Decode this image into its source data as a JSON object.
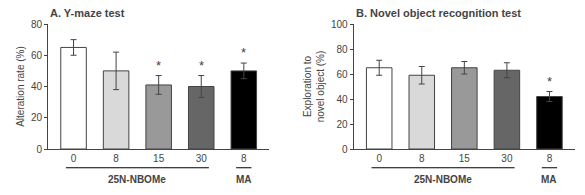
{
  "chart_data": [
    {
      "type": "bar",
      "title": "A. Y-maze test",
      "y_label": "Alteration rate (%)",
      "categories": [
        "0",
        "8",
        "15",
        "30",
        "8"
      ],
      "values": [
        65,
        50,
        41,
        40,
        50
      ],
      "errors": [
        5,
        12,
        6,
        7,
        5
      ],
      "colors": [
        "#ffffff",
        "#d9d9d9",
        "#999999",
        "#666666",
        "#000000"
      ],
      "ylim": [
        0,
        80
      ],
      "yticks": [
        0,
        20,
        40,
        60,
        80
      ],
      "grid": false,
      "annotations": [
        {
          "text": "*",
          "x": 2
        },
        {
          "text": "*",
          "x": 3
        },
        {
          "text": "*",
          "x": 4
        }
      ],
      "groups": [
        {
          "text": "25N-NBOMe",
          "from": 0,
          "to": 3
        },
        {
          "text": "MA",
          "from": 4,
          "to": 4
        }
      ]
    },
    {
      "type": "bar",
      "title": "B. Novel object recognition test",
      "y_label": "Exploration to\nnovel object (%)",
      "categories": [
        "0",
        "8",
        "15",
        "30",
        "8"
      ],
      "values": [
        65,
        59,
        65,
        63,
        42
      ],
      "errors": [
        6,
        7,
        5,
        6,
        4
      ],
      "colors": [
        "#ffffff",
        "#d9d9d9",
        "#999999",
        "#666666",
        "#000000"
      ],
      "ylim": [
        0,
        100
      ],
      "yticks": [
        0,
        20,
        40,
        60,
        80,
        100
      ],
      "grid": false,
      "annotations": [
        {
          "text": "*",
          "x": 4
        }
      ],
      "groups": [
        {
          "text": "25N-NBOMe",
          "from": 0,
          "to": 3
        },
        {
          "text": "MA",
          "from": 4,
          "to": 4
        }
      ]
    }
  ]
}
